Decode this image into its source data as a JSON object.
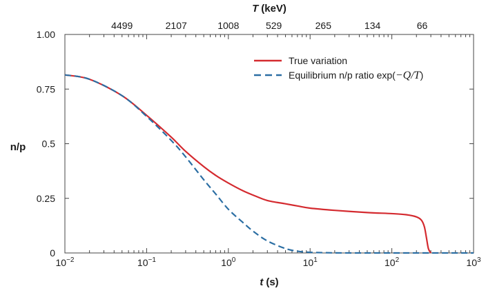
{
  "chart_data": {
    "type": "line",
    "title": "",
    "x_axis": {
      "label_var": "t",
      "label_unit": "(s)",
      "scale": "log",
      "range": [
        0.01,
        1000
      ],
      "ticks": [
        0.01,
        0.1,
        1,
        10,
        100,
        1000
      ],
      "tick_labels": [
        {
          "base": "10",
          "exp": "−2"
        },
        {
          "base": "10",
          "exp": "−1"
        },
        {
          "base": "10",
          "exp": "0"
        },
        {
          "base": "10",
          "exp": "1"
        },
        {
          "base": "10",
          "exp": "2"
        },
        {
          "base": "10",
          "exp": "3"
        }
      ]
    },
    "top_axis": {
      "label_var": "T",
      "label_unit": "(keV)",
      "tick_labels": [
        "4499",
        "2107",
        "1008",
        "529",
        "265",
        "134",
        "66"
      ],
      "tick_t_values": [
        0.05,
        0.23,
        1.0,
        3.6,
        14.5,
        58,
        235
      ]
    },
    "y_axis": {
      "label": "n/p",
      "range": [
        0,
        1.0
      ],
      "ticks": [
        0,
        0.25,
        0.5,
        0.75,
        1.0
      ],
      "tick_labels": [
        "0",
        "0.25",
        "0.5",
        "0.75",
        "1.00"
      ]
    },
    "series": [
      {
        "name": "True variation",
        "color": "#d42a2f",
        "dash": "solid",
        "x": [
          0.01,
          0.02,
          0.05,
          0.1,
          0.2,
          0.3,
          0.5,
          0.7,
          1,
          1.5,
          2,
          3,
          5,
          7,
          10,
          20,
          50,
          100,
          150,
          200,
          230,
          250,
          265,
          280,
          300
        ],
        "y": [
          0.815,
          0.795,
          0.72,
          0.63,
          0.53,
          0.465,
          0.395,
          0.355,
          0.32,
          0.285,
          0.265,
          0.24,
          0.225,
          0.215,
          0.205,
          0.195,
          0.185,
          0.18,
          0.175,
          0.165,
          0.15,
          0.12,
          0.07,
          0.02,
          0.0
        ]
      },
      {
        "name": "Equilibrium n/p ratio exp(−Q/T)",
        "legend_prefix": "Equilibrium n/p ratio exp(",
        "legend_math": "−Q/T",
        "legend_suffix": ")",
        "color": "#2b6ea3",
        "dash": "dashed",
        "x": [
          0.01,
          0.02,
          0.05,
          0.1,
          0.2,
          0.3,
          0.5,
          0.7,
          1,
          1.5,
          2,
          3,
          5,
          7,
          10,
          20,
          50,
          100,
          1000
        ],
        "y": [
          0.815,
          0.795,
          0.72,
          0.625,
          0.515,
          0.44,
          0.335,
          0.27,
          0.2,
          0.14,
          0.1,
          0.055,
          0.02,
          0.008,
          0.003,
          0.0005,
          0.0,
          0.0,
          0.0
        ]
      }
    ],
    "legend_position": "top-right",
    "grid": false
  }
}
